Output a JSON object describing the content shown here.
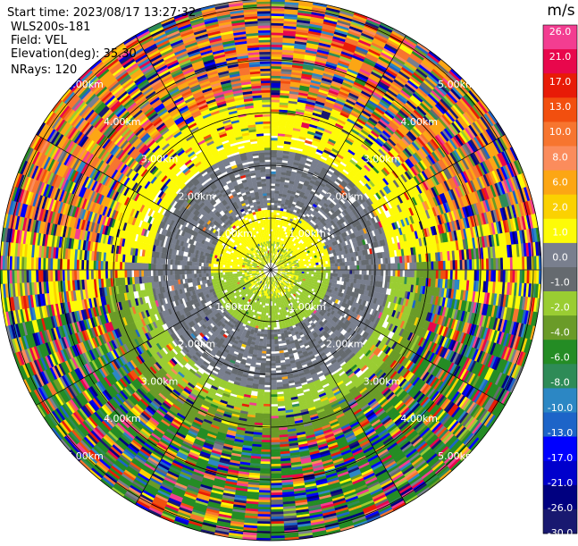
{
  "header": {
    "lines": [
      "Start time: 2023/08/17 13:27:32",
      "WLS200s-181",
      "Field: VEL",
      "Elevation(deg): 35.30",
      "NRays: 120"
    ]
  },
  "chart_data": {
    "type": "heatmap",
    "projection": "polar PPI",
    "field": "VEL",
    "nrays": 120,
    "range_rings_km": [
      "1.00km",
      "2.00km",
      "3.00km",
      "4.00km",
      "5.00km"
    ],
    "colorbar": {
      "unit": "m/s",
      "tick_labels": [
        "26.0",
        "21.0",
        "17.0",
        "13.0",
        "10.0",
        "8.0",
        "6.0",
        "2.0",
        "1.0",
        "0.0",
        "-1.0",
        "-2.0",
        "-4.0",
        "-6.0",
        "-8.0",
        "-10.0",
        "-13.0",
        "-17.0",
        "-21.0",
        "-26.0",
        "-30.0"
      ],
      "colors_top_to_bottom": [
        "#f33d91",
        "#e8074c",
        "#e81b07",
        "#f24f0f",
        "#f7752f",
        "#fb8c5c",
        "#fca614",
        "#fbd101",
        "#fdfb07",
        "#797f8e",
        "#656a6f",
        "#9acd32",
        "#6a9b28",
        "#248c24",
        "#2e8b57",
        "#2c87c4",
        "#1d64c8",
        "#0000ff",
        "#0000cc",
        "#000080",
        "#191970"
      ]
    }
  }
}
